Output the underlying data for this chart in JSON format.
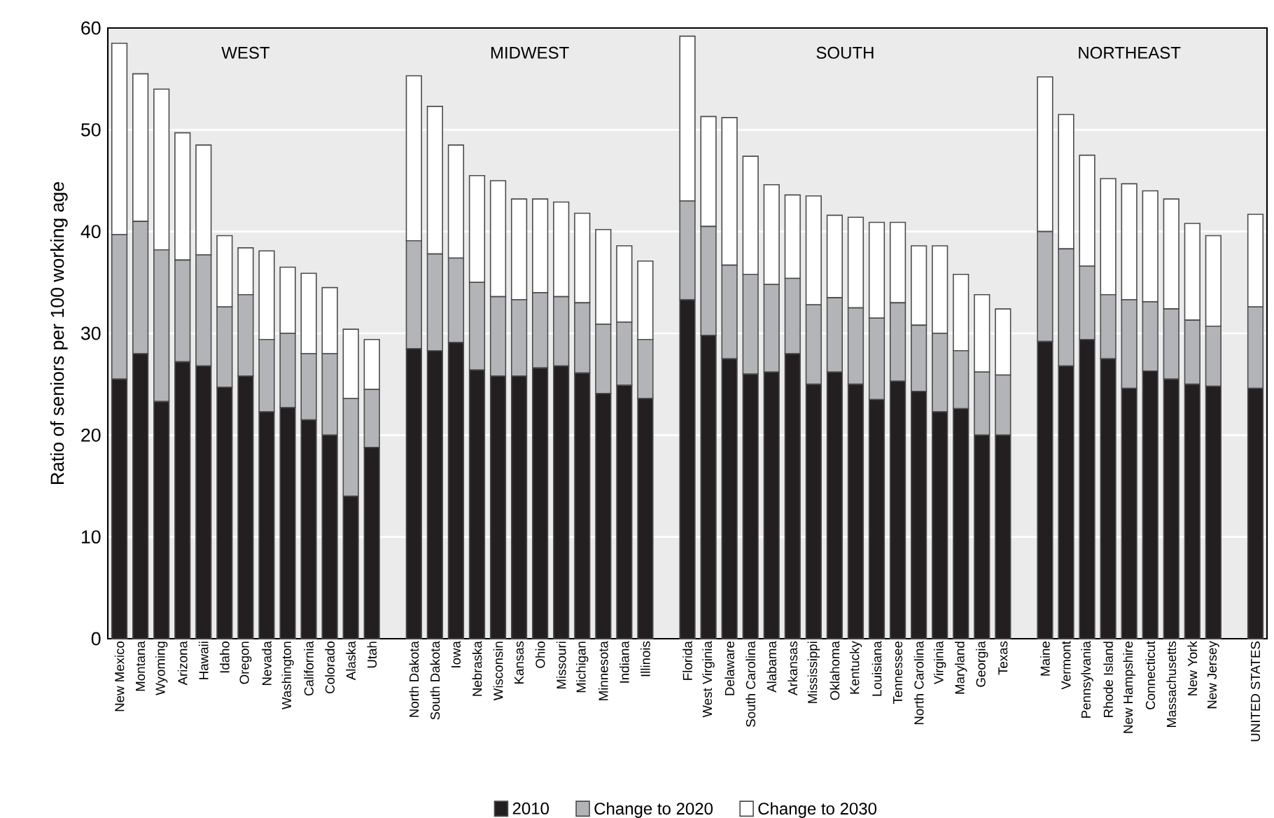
{
  "chart_data": {
    "type": "bar",
    "stacked": true,
    "ylabel": "Ratio of seniors per 100 working age",
    "categories": [
      "New Mexico",
      "Montana",
      "Wyoming",
      "Arizona",
      "Hawaii",
      "Idaho",
      "Oregon",
      "Nevada",
      "Washington",
      "California",
      "Colorado",
      "Alaska",
      "Utah",
      null,
      "North Dakota",
      "South Dakota",
      "Iowa",
      "Nebraska",
      "Wisconsin",
      "Kansas",
      "Ohio",
      "Missouri",
      "Michigan",
      "Minnesota",
      "Indiana",
      "Illinois",
      null,
      "Florida",
      "West Virginia",
      "Delaware",
      "South Carolina",
      "Alabama",
      "Arkansas",
      "Mississippi",
      "Oklahoma",
      "Kentucky",
      "Louisiana",
      "Tennessee",
      "North Carolina",
      "Virginia",
      "Maryland",
      "Georgia",
      "Texas",
      null,
      "Maine",
      "Vermont",
      "Pennsylvania",
      "Rhode Island",
      "New Hampshire",
      "Connecticut",
      "Massachusetts",
      "New York",
      "New Jersey",
      null,
      "UNITED STATES"
    ],
    "series": [
      {
        "name": "2010",
        "color": "#231f20",
        "values": [
          25.5,
          28,
          23.3,
          27.2,
          26.8,
          24.7,
          25.8,
          22.3,
          22.7,
          21.5,
          20,
          14,
          18.8,
          null,
          28.5,
          28.3,
          29.1,
          26.4,
          25.8,
          25.8,
          26.6,
          26.8,
          26.1,
          24.1,
          24.9,
          23.6,
          null,
          33.3,
          29.8,
          27.5,
          26,
          26.2,
          28,
          25,
          26.2,
          25,
          23.5,
          25.3,
          24.3,
          22.3,
          22.6,
          20,
          20,
          null,
          29.2,
          26.8,
          29.4,
          27.5,
          24.6,
          26.3,
          25.5,
          25,
          24.8,
          null,
          24.6
        ]
      },
      {
        "name": "Change to 2020",
        "color": "#b3b4b8",
        "values": [
          14.2,
          13,
          14.9,
          10,
          10.9,
          7.9,
          8,
          7.1,
          7.3,
          6.5,
          8,
          9.6,
          5.7,
          null,
          10.6,
          9.5,
          8.3,
          8.6,
          7.8,
          7.5,
          7.4,
          6.8,
          6.9,
          6.8,
          6.2,
          5.8,
          null,
          9.7,
          10.7,
          9.2,
          9.8,
          8.6,
          7.4,
          7.8,
          7.3,
          7.5,
          8,
          7.7,
          6.5,
          7.7,
          5.7,
          6.2,
          5.9,
          null,
          10.8,
          11.5,
          7.2,
          6.3,
          8.7,
          6.8,
          6.9,
          6.3,
          5.9,
          null,
          8.0
        ]
      },
      {
        "name": "Change to 2030",
        "color": "#ffffff",
        "values": [
          18.8,
          14.5,
          15.8,
          12.5,
          10.8,
          7,
          4.6,
          8.7,
          6.5,
          7.9,
          6.5,
          6.8,
          4.9,
          null,
          16.2,
          14.5,
          11.1,
          10.5,
          11.4,
          9.9,
          9.2,
          9.3,
          8.8,
          9.3,
          7.5,
          7.7,
          null,
          16.2,
          10.8,
          14.5,
          11.6,
          9.8,
          8.2,
          10.7,
          8.1,
          8.9,
          9.4,
          7.9,
          7.8,
          8.6,
          7.5,
          7.6,
          6.5,
          null,
          15.2,
          13.2,
          10.9,
          11.4,
          11.4,
          10.9,
          10.8,
          9.5,
          8.9,
          null,
          9.1
        ]
      }
    ],
    "annotations": [
      "WEST",
      "MIDWEST",
      "SOUTH",
      "NORTHEAST"
    ],
    "ylim": [
      0,
      60
    ],
    "yticks": [
      0,
      10,
      20,
      30,
      40,
      50,
      60
    ],
    "grid": "y",
    "legend": "bottom"
  }
}
